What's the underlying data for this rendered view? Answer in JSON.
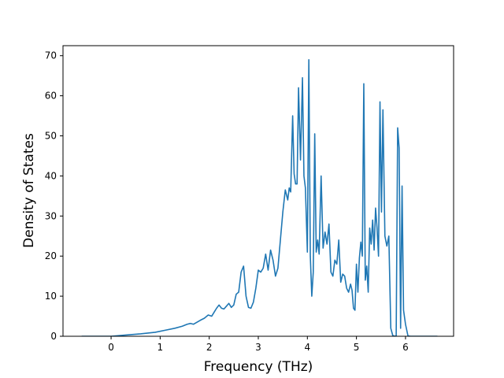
{
  "chart_data": {
    "type": "line",
    "title": "",
    "xlabel": "Frequency (THz)",
    "ylabel": "Density of States",
    "xlim": [
      -0.98,
      6.98
    ],
    "ylim": [
      0,
      72.5
    ],
    "xticks": [
      0,
      1,
      2,
      3,
      4,
      5,
      6
    ],
    "yticks": [
      0,
      10,
      20,
      30,
      40,
      50,
      60,
      70
    ],
    "grid": false,
    "legend": "none",
    "series": [
      {
        "color": "#1f77b4",
        "x": [
          -0.6,
          0.0,
          0.3,
          0.6,
          0.9,
          1.1,
          1.3,
          1.45,
          1.55,
          1.62,
          1.68,
          1.75,
          1.82,
          1.9,
          1.98,
          2.05,
          2.1,
          2.15,
          2.2,
          2.25,
          2.3,
          2.35,
          2.4,
          2.45,
          2.5,
          2.55,
          2.6,
          2.65,
          2.7,
          2.75,
          2.8,
          2.85,
          2.9,
          2.95,
          3.0,
          3.05,
          3.1,
          3.15,
          3.2,
          3.25,
          3.3,
          3.35,
          3.4,
          3.45,
          3.5,
          3.55,
          3.6,
          3.63,
          3.66,
          3.7,
          3.73,
          3.76,
          3.79,
          3.82,
          3.86,
          3.9,
          3.93,
          3.96,
          4.0,
          4.03,
          4.06,
          4.09,
          4.12,
          4.15,
          4.18,
          4.21,
          4.24,
          4.28,
          4.32,
          4.36,
          4.4,
          4.44,
          4.48,
          4.52,
          4.56,
          4.6,
          4.64,
          4.68,
          4.72,
          4.76,
          4.8,
          4.84,
          4.88,
          4.91,
          4.94,
          4.97,
          5.0,
          5.03,
          5.06,
          5.09,
          5.12,
          5.15,
          5.18,
          5.21,
          5.24,
          5.27,
          5.3,
          5.33,
          5.36,
          5.39,
          5.42,
          5.45,
          5.48,
          5.51,
          5.54,
          5.58,
          5.62,
          5.66,
          5.7,
          5.74,
          5.78,
          5.81,
          5.84,
          5.87,
          5.9,
          5.93,
          5.96,
          6.0,
          6.05,
          6.1,
          6.3,
          6.65
        ],
        "y": [
          0,
          0,
          0.3,
          0.6,
          1.0,
          1.5,
          2.0,
          2.5,
          3.0,
          3.2,
          3.0,
          3.5,
          4.0,
          4.5,
          5.3,
          5.0,
          6.0,
          7.0,
          7.8,
          7.0,
          6.8,
          7.5,
          8.2,
          7.2,
          7.8,
          10.5,
          11.0,
          16.0,
          17.5,
          10.0,
          7.2,
          7.0,
          8.5,
          12.0,
          16.5,
          16.0,
          17.0,
          20.5,
          16.5,
          21.5,
          19.0,
          15.0,
          17.0,
          24.0,
          31.0,
          36.5,
          34.0,
          37.0,
          36.0,
          55.0,
          40.5,
          38.0,
          38.0,
          62.0,
          44.0,
          64.5,
          40.0,
          37.0,
          21.0,
          69.0,
          20.0,
          10.0,
          16.0,
          50.5,
          21.0,
          24.0,
          20.5,
          40.0,
          22.0,
          26.0,
          23.0,
          28.0,
          16.0,
          15.0,
          19.0,
          18.0,
          24.0,
          13.5,
          15.5,
          15.0,
          12.0,
          11.0,
          13.0,
          11.5,
          7.0,
          6.5,
          18.0,
          11.0,
          19.5,
          23.5,
          20.0,
          63.0,
          14.0,
          17.5,
          11.0,
          27.0,
          23.0,
          29.0,
          21.5,
          32.0,
          27.0,
          20.0,
          58.5,
          31.0,
          56.5,
          25.0,
          22.5,
          25.0,
          2.0,
          0.2,
          0,
          0.1,
          52.0,
          47.0,
          2.0,
          37.5,
          6.5,
          3.0,
          0.1,
          0,
          0,
          0
        ]
      }
    ]
  }
}
